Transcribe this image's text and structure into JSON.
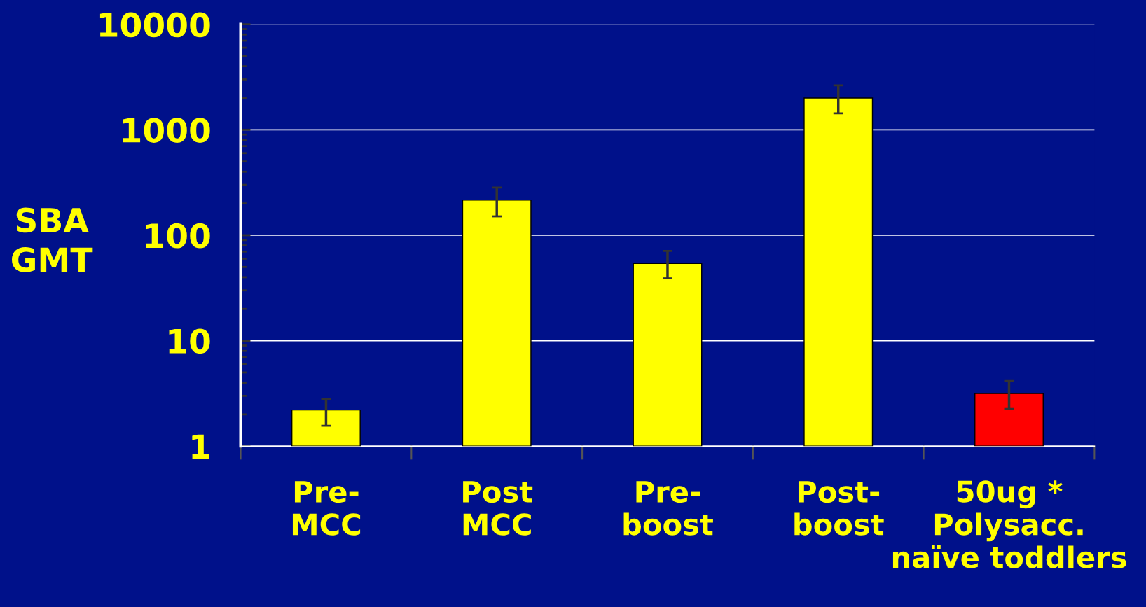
{
  "chart_data": {
    "type": "bar",
    "ylabel": "SBA\nGMT",
    "categories": [
      "Pre-\nMCC",
      "Post\nMCC",
      "Pre-\nboost",
      "Post-\nboost",
      "50ug *\nPolysacc.\nnaïve toddlers"
    ],
    "values": [
      2.2,
      215,
      54,
      2000,
      3.15
    ],
    "colors": [
      "#ffff00",
      "#ffff00",
      "#ffff00",
      "#ffff00",
      "#ff0000"
    ],
    "errors": [
      [
        1.56,
        2.8
      ],
      [
        151,
        283
      ],
      [
        39,
        71
      ],
      [
        1430,
        2640
      ],
      [
        2.25,
        4.15
      ]
    ],
    "log": true,
    "ylim": [
      1,
      10000
    ],
    "yticks": [
      1,
      10,
      100,
      1000,
      10000
    ],
    "grid": "y"
  }
}
